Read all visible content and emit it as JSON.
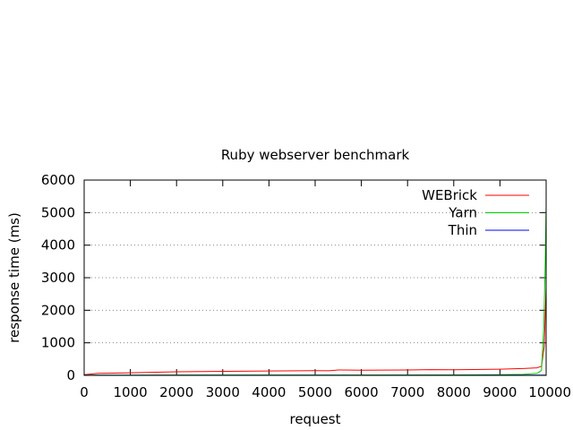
{
  "chart_data": {
    "type": "line",
    "title": "Ruby webserver benchmark",
    "xlabel": "request",
    "ylabel": "response time (ms)",
    "xlim": [
      0,
      10000
    ],
    "ylim": [
      0,
      6000
    ],
    "xticks": [
      0,
      1000,
      2000,
      3000,
      4000,
      5000,
      6000,
      7000,
      8000,
      9000,
      10000
    ],
    "yticks": [
      0,
      1000,
      2000,
      3000,
      4000,
      5000,
      6000
    ],
    "grid": "horizontal dotted",
    "legend_position": "top-right",
    "series": [
      {
        "name": "WEBrick",
        "color": "#ff0000",
        "points": [
          [
            0,
            20
          ],
          [
            300,
            60
          ],
          [
            1000,
            80
          ],
          [
            2000,
            110
          ],
          [
            3000,
            125
          ],
          [
            4000,
            135
          ],
          [
            5000,
            145
          ],
          [
            5300,
            140
          ],
          [
            5500,
            165
          ],
          [
            6000,
            160
          ],
          [
            7000,
            165
          ],
          [
            7500,
            175
          ],
          [
            8000,
            170
          ],
          [
            9000,
            190
          ],
          [
            9500,
            210
          ],
          [
            9800,
            230
          ],
          [
            9900,
            280
          ],
          [
            9960,
            900
          ],
          [
            10000,
            2700
          ]
        ]
      },
      {
        "name": "Yarn",
        "color": "#00cc00",
        "points": [
          [
            0,
            5
          ],
          [
            1000,
            8
          ],
          [
            2000,
            10
          ],
          [
            4000,
            12
          ],
          [
            6000,
            12
          ],
          [
            8000,
            15
          ],
          [
            9000,
            20
          ],
          [
            9500,
            30
          ],
          [
            9800,
            60
          ],
          [
            9900,
            150
          ],
          [
            9950,
            1500
          ],
          [
            9980,
            3500
          ],
          [
            10000,
            5200
          ]
        ]
      },
      {
        "name": "Thin",
        "color": "#0000ff",
        "points": [
          [
            0,
            2
          ],
          [
            2000,
            3
          ],
          [
            5000,
            3
          ],
          [
            8000,
            4
          ],
          [
            10000,
            5
          ]
        ]
      }
    ]
  }
}
